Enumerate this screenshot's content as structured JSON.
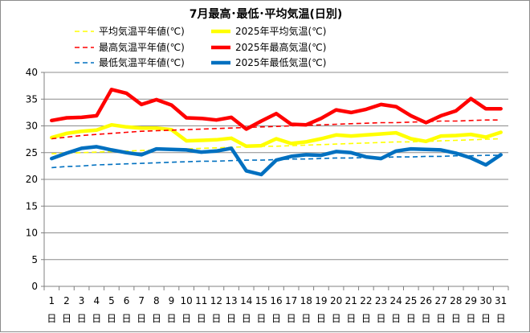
{
  "chart_data": {
    "type": "line",
    "title": "7月最高･最低･平均気温(日別)",
    "categories": [
      "1",
      "2",
      "3",
      "4",
      "5",
      "6",
      "7",
      "8",
      "9",
      "10",
      "11",
      "12",
      "13",
      "14",
      "15",
      "16",
      "17",
      "18",
      "19",
      "20",
      "21",
      "22",
      "23",
      "24",
      "25",
      "26",
      "27",
      "28",
      "29",
      "30",
      "31"
    ],
    "day_suffix": "日",
    "ylim": [
      0,
      40
    ],
    "yticks": [
      "0",
      "5",
      "10",
      "15",
      "20",
      "25",
      "30",
      "35",
      "40"
    ],
    "grid": true,
    "legend": "top",
    "series": [
      {
        "name": "平均気温平年値(℃)",
        "color": "#ffff00",
        "dashed": true,
        "values": [
          24.8,
          24.9,
          25.0,
          25.1,
          25.2,
          25.3,
          25.4,
          25.5,
          25.6,
          25.7,
          25.8,
          25.9,
          26.0,
          26.1,
          26.2,
          26.2,
          26.3,
          26.4,
          26.5,
          26.6,
          26.7,
          26.8,
          26.9,
          27.0,
          27.0,
          27.1,
          27.2,
          27.3,
          27.4,
          27.5,
          27.6
        ]
      },
      {
        "name": "2025年平均気温(℃)",
        "color": "#ffff00",
        "dashed": false,
        "values": [
          27.8,
          28.6,
          29.0,
          29.2,
          30.2,
          29.8,
          29.6,
          29.6,
          29.3,
          27.2,
          27.3,
          27.4,
          27.7,
          26.2,
          26.3,
          27.6,
          26.7,
          27.0,
          27.6,
          28.3,
          28.1,
          28.3,
          28.5,
          28.7,
          27.6,
          27.1,
          28.1,
          28.2,
          28.4,
          27.9,
          28.8
        ]
      },
      {
        "name": "最高気温平年値(℃)",
        "color": "#ff0000",
        "dashed": true,
        "values": [
          27.6,
          27.9,
          28.2,
          28.4,
          28.6,
          28.8,
          29.0,
          29.1,
          29.2,
          29.3,
          29.4,
          29.5,
          29.6,
          29.7,
          29.8,
          29.9,
          30.0,
          30.1,
          30.2,
          30.3,
          30.4,
          30.5,
          30.6,
          30.6,
          30.7,
          30.8,
          30.9,
          30.9,
          31.0,
          31.1,
          31.1
        ]
      },
      {
        "name": "2025年最高気温(℃)",
        "color": "#ff0000",
        "dashed": false,
        "values": [
          31.0,
          31.5,
          31.6,
          31.9,
          36.8,
          36.1,
          34.0,
          34.9,
          33.9,
          31.5,
          31.4,
          31.1,
          31.6,
          29.4,
          30.9,
          32.3,
          30.3,
          30.2,
          31.4,
          33.0,
          32.5,
          33.1,
          34.0,
          33.6,
          31.9,
          30.6,
          31.9,
          32.8,
          35.1,
          33.2,
          33.2
        ]
      },
      {
        "name": "最低気温平年値(℃)",
        "color": "#0070c0",
        "dashed": true,
        "values": [
          22.2,
          22.4,
          22.5,
          22.7,
          22.8,
          22.9,
          23.0,
          23.1,
          23.2,
          23.3,
          23.4,
          23.4,
          23.5,
          23.6,
          23.6,
          23.7,
          23.8,
          23.8,
          23.9,
          24.0,
          24.0,
          24.1,
          24.1,
          24.2,
          24.2,
          24.3,
          24.3,
          24.4,
          24.4,
          24.5,
          24.5
        ]
      },
      {
        "name": "2025年最低気温(℃)",
        "color": "#0070c0",
        "dashed": false,
        "values": [
          23.9,
          24.9,
          25.8,
          26.1,
          25.5,
          25.0,
          24.6,
          25.7,
          25.6,
          25.5,
          25.1,
          25.3,
          25.8,
          21.6,
          20.9,
          23.6,
          24.3,
          24.6,
          24.5,
          25.2,
          25.0,
          24.2,
          23.9,
          25.3,
          25.7,
          25.6,
          25.5,
          24.9,
          24.0,
          22.7,
          24.6
        ]
      }
    ]
  }
}
